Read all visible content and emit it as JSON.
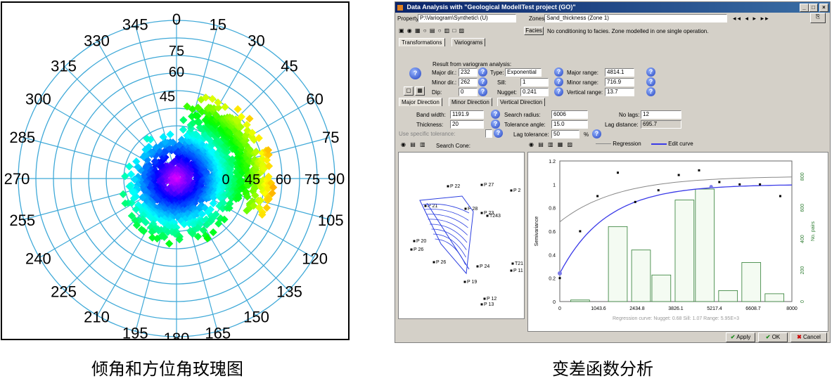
{
  "captions": {
    "left": "倾角和方位角玫瑰图",
    "right": "变差函数分析"
  },
  "rose": {
    "azimuth_labels": [
      "0",
      "15",
      "30",
      "45",
      "60",
      "75",
      "90",
      "105",
      "120",
      "135",
      "150",
      "165",
      "180",
      "195",
      "210",
      "225",
      "240",
      "255",
      "270",
      "285",
      "300",
      "315",
      "330",
      "345"
    ],
    "dip_labels": [
      "75",
      "60",
      "45"
    ],
    "dip_labels_east": [
      "0",
      "45",
      "60",
      "75"
    ]
  },
  "window": {
    "title": "Data Analysis with \"Geological ModellTest project (GO)\"",
    "title_buttons": [
      "_",
      "□",
      "×"
    ],
    "property_label": "Property:",
    "property_value": "P:\\Variogram\\Synthetic\\ (U)",
    "zones_label": "Zones:",
    "zones_value": "Sand_thickness (Zone 1)",
    "facies_label": "Facies",
    "facies_note": "No conditioning to facies. Zone modelled in one single operation.",
    "tabs": [
      "Transformations",
      "Variograms"
    ],
    "result_caption": "Result from variogram analysis:",
    "params": {
      "major_dir_label": "Major dir.:",
      "major_dir": "232",
      "type_label": "Type:",
      "type": "Exponential",
      "major_range_label": "Major range:",
      "major_range": "4814.1",
      "minor_dir_label": "Minor dir.:",
      "minor_dir": "262",
      "sill_label": "Sill:",
      "sill": "1",
      "minor_range_label": "Minor range:",
      "minor_range": "716.9",
      "dip_label": "Dip:",
      "dip": "0",
      "nugget_label": "Nugget:",
      "nugget": "0.241",
      "vertical_range_label": "Vertical range:",
      "vertical_range": "13.7"
    },
    "direction_tabs": [
      "Major Direction",
      "Minor Direction",
      "Vertical Direction"
    ],
    "search": {
      "band_width_label": "Band width:",
      "band_width": "1191.9",
      "search_radius_label": "Search radius:",
      "search_radius": "6006",
      "no_lags_label": "No lags:",
      "no_lags": "12",
      "thickness_label": "Thickness:",
      "thickness": "20",
      "tolerance_angle_label": "Tolerance angle:",
      "tolerance_angle": "15.0",
      "lag_distance_label": "Lag distance:",
      "lag_distance": "695.7",
      "use_tol_label": "Use specific tolerance:",
      "lag_tolerance_label": "Lag tolerance:",
      "lag_tolerance": "50",
      "percent": "%"
    },
    "search_cone_label": "Search Cone:",
    "wells": [
      "P 22",
      "P 27",
      "P 2",
      "P 21",
      "P 28",
      "P 23",
      "T243",
      "P 20",
      "P 26",
      "P 26",
      "T21",
      "P 11",
      "P 19",
      "P 12",
      "P 13",
      "P 24"
    ],
    "legend": {
      "regression": "Regression",
      "edit": "Edit curve"
    },
    "plot": {
      "x_ticks": [
        "0",
        "1043.6",
        "2434.8",
        "3826.1",
        "5217.4",
        "6608.7",
        "8000"
      ],
      "y_ticks": [
        "0",
        "0.2",
        "0.4",
        "0.6",
        "0.8",
        "1",
        "1.2"
      ],
      "y2_ticks": [
        "0",
        "200",
        "400",
        "600",
        "800"
      ],
      "ylabel": "Semivariance",
      "y2label": "No. pairs",
      "footer": "Regression curve: Nugget: 0.68 Sill: 1.07 Range: 5.95E+3"
    },
    "buttons": {
      "apply": "Apply",
      "ok": "OK",
      "cancel": "Cancel"
    }
  },
  "chart_data": {
    "type": "scatter",
    "title": "",
    "xlabel": "",
    "ylabel": "Semivariance",
    "xlim": [
      0,
      8000
    ],
    "ylim": [
      0,
      1.2
    ],
    "points": {
      "x": [
        0,
        700,
        1300,
        2000,
        2600,
        3400,
        4100,
        4800,
        5500,
        6200,
        6900,
        7600
      ],
      "y": [
        0.2,
        0.6,
        0.9,
        1.1,
        0.85,
        0.95,
        1.08,
        1.12,
        1.02,
        1.0,
        1.0,
        0.9
      ]
    },
    "histogram_pairs": {
      "x": [
        700,
        2000,
        2800,
        3500,
        4300,
        5000,
        5800,
        6600,
        7400
      ],
      "y": [
        10,
        480,
        330,
        170,
        650,
        720,
        70,
        250,
        50
      ]
    },
    "y2lim": [
      0,
      900
    ],
    "series": [
      {
        "name": "Regression"
      },
      {
        "name": "Edit curve"
      }
    ]
  },
  "colors": {
    "titlebar": "#0a246a",
    "window_bg": "#d4d0c8",
    "edit_curve": "#3a3ae8",
    "regression": "#888888",
    "pairs_bar": "#2e7d32"
  }
}
